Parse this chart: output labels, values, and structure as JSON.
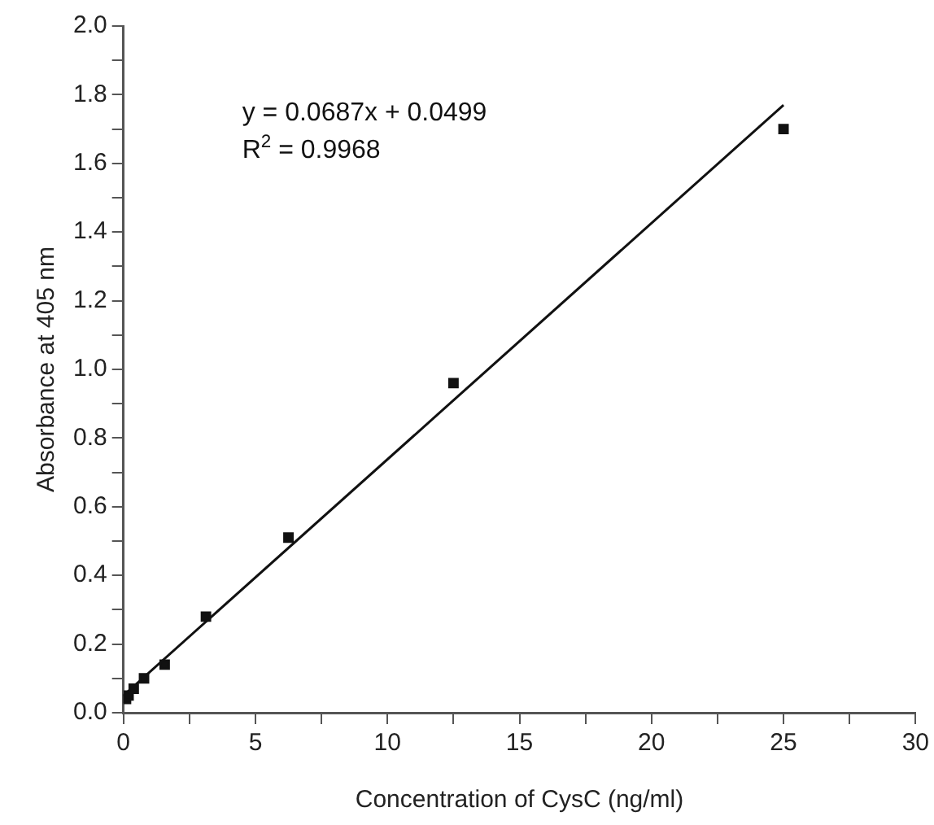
{
  "chart_data": {
    "type": "scatter",
    "xlabel": "Concentration of CysC (ng/ml)",
    "ylabel": "Absorbance at 405 nm",
    "annotations": [
      "y = 0.0687x + 0.0499",
      "R$^{2}$ = 0.9968"
    ],
    "marker": "square",
    "legend": false,
    "grid": false,
    "series": [
      {
        "color": "#111111",
        "x": [
          0.098,
          0.195,
          0.39,
          0.78,
          1.5625,
          3.125,
          6.25,
          12.5,
          25
        ],
        "values": [
          0.04,
          0.05,
          0.07,
          0.1,
          0.14,
          0.28,
          0.51,
          0.96,
          1.7
        ]
      },
      {
        "type": "line",
        "color": "#111111",
        "marker": "none",
        "x": [
          0,
          25
        ],
        "values": [
          0.05,
          1.77
        ]
      }
    ],
    "xlim": [
      0,
      30
    ],
    "xticks": [
      0,
      {
        "value": 2.5,
        "label": null
      },
      5,
      {
        "value": 7.5,
        "label": null
      },
      10,
      {
        "value": 12.5,
        "label": null
      },
      15,
      {
        "value": 17.5,
        "label": null
      },
      20,
      {
        "value": 22.5,
        "label": null
      },
      25,
      {
        "value": 27.5,
        "label": null
      },
      30
    ],
    "ylim": [
      0,
      2
    ],
    "yticks": [
      "0.0",
      {
        "value": 0.1,
        "label": null
      },
      0.2,
      {
        "value": 0.3,
        "label": null
      },
      0.4,
      {
        "value": 0.5,
        "label": null
      },
      0.6,
      {
        "value": 0.7,
        "label": null
      },
      0.8,
      {
        "value": 0.9,
        "label": null
      },
      "1.0",
      {
        "value": 1.1,
        "label": null
      },
      1.2,
      {
        "value": 1.3,
        "label": null
      },
      1.4,
      {
        "value": 1.5,
        "label": null
      },
      1.6,
      {
        "value": 1.7,
        "label": null
      },
      1.8,
      {
        "value": 1.9,
        "label": null
      },
      "2.0"
    ]
  }
}
